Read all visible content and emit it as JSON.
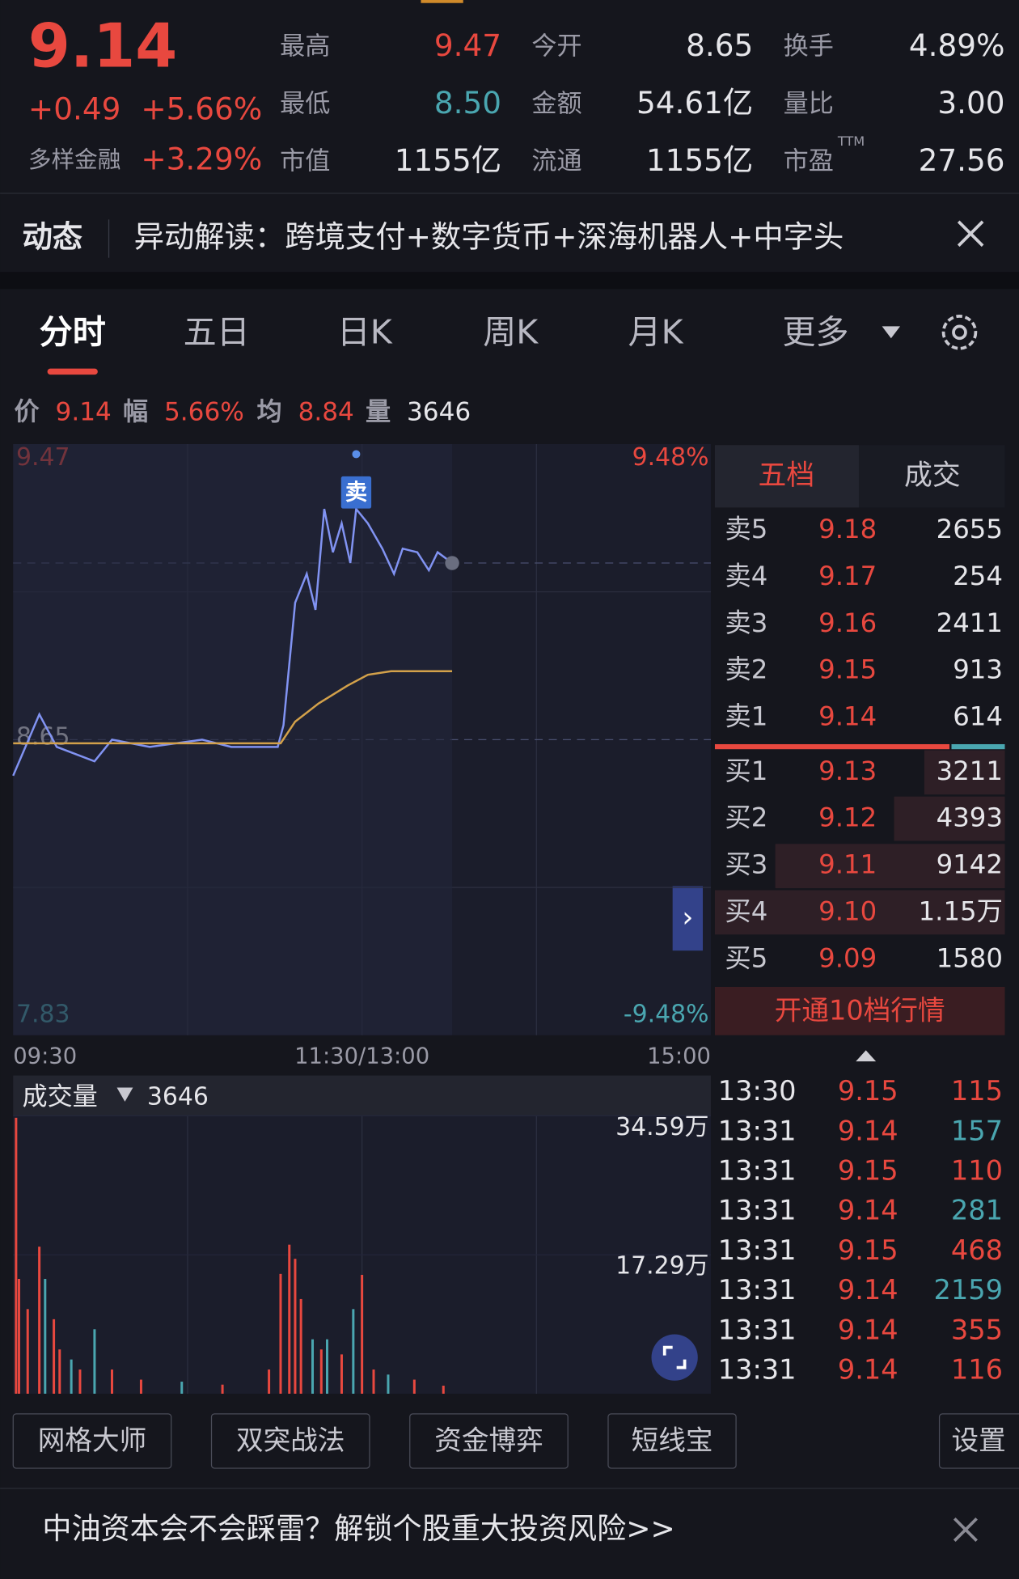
{
  "header": {
    "price": "9.14",
    "change": "+0.49",
    "change_pct": "+5.66%",
    "sector": "多样金融",
    "sector_pct": "+3.29%",
    "ttm": "TTM",
    "stats": [
      {
        "label": "最高",
        "value": "9.47",
        "color": "#e8483f"
      },
      {
        "label": "今开",
        "value": "8.65",
        "color": "#e6e6ea"
      },
      {
        "label": "换手",
        "value": "4.89%",
        "color": "#e6e6ea"
      },
      {
        "label": "最低",
        "value": "8.50",
        "color": "#4aa6b0"
      },
      {
        "label": "金额",
        "value": "54.61亿",
        "color": "#e6e6ea"
      },
      {
        "label": "量比",
        "value": "3.00",
        "color": "#e6e6ea"
      },
      {
        "label": "市值",
        "value": "1155亿",
        "color": "#e6e6ea"
      },
      {
        "label": "流通",
        "value": "1155亿",
        "color": "#e6e6ea"
      },
      {
        "label": "市盈",
        "value": "27.56",
        "color": "#e6e6ea"
      }
    ]
  },
  "news": {
    "tag": "动态",
    "text": "异动解读：跨境支付+数字货币+深海机器人+中字头"
  },
  "tabs": [
    "分时",
    "五日",
    "日K",
    "周K",
    "月K",
    "更多"
  ],
  "info_bar": [
    {
      "label": "价",
      "value": "9.14"
    },
    {
      "label": "幅",
      "value": "5.66%"
    },
    {
      "label": "均",
      "value": "8.84"
    },
    {
      "label": "量",
      "value": "3646"
    }
  ],
  "chart_data": [
    {
      "type": "line",
      "annotation": "卖",
      "xlim": [
        0,
        240
      ],
      "xticks": [
        {
          "value": 0,
          "label": "09:30"
        },
        {
          "value": 120,
          "label": "11:30/13:00"
        },
        {
          "value": 240,
          "label": "15:00"
        }
      ],
      "ylim": [
        7.83,
        9.47
      ],
      "yticks": [
        9.47,
        8.65,
        7.83
      ],
      "y2lim": [
        -9.48,
        9.48
      ],
      "y2ticks": [
        {
          "value": 9.48,
          "label": "9.48%"
        },
        {
          "value": -9.48,
          "label": "-9.48%"
        }
      ],
      "series": [
        {
          "color": "#8193f2",
          "x": [
            0,
            9,
            15,
            28,
            34,
            47,
            65,
            75,
            91,
            93,
            97,
            101,
            104,
            107,
            110,
            113,
            116,
            118,
            122,
            127,
            131,
            134,
            139,
            143,
            146,
            151
          ],
          "values": [
            8.55,
            8.72,
            8.63,
            8.59,
            8.65,
            8.63,
            8.65,
            8.63,
            8.63,
            8.69,
            9.03,
            9.11,
            9.01,
            9.29,
            9.17,
            9.25,
            9.14,
            9.29,
            9.25,
            9.18,
            9.11,
            9.18,
            9.17,
            9.12,
            9.17,
            9.14
          ]
        },
        {
          "color": "#d3a14a",
          "x": [
            0,
            92,
            97,
            105,
            115,
            122,
            130,
            151
          ],
          "values": [
            8.64,
            8.64,
            8.7,
            8.75,
            8.8,
            8.83,
            8.84,
            8.84
          ]
        }
      ]
    },
    {
      "type": "bar",
      "title": "成交量",
      "latest": "3646",
      "xlim": [
        0,
        240
      ],
      "ylim": [
        0,
        34.59
      ],
      "yticks": [
        {
          "value": 34.59,
          "label": "34.59万"
        },
        {
          "value": 17.29,
          "label": "17.29万"
        }
      ],
      "x": [
        1,
        2,
        5,
        9,
        11,
        14,
        16,
        20,
        23,
        28,
        34,
        44,
        58,
        72,
        88,
        92,
        95,
        97,
        99,
        103,
        106,
        108,
        113,
        117,
        120,
        124,
        129,
        138,
        148
      ],
      "values": [
        34.34,
        14.29,
        10.53,
        18.3,
        14.29,
        9.27,
        5.51,
        4.26,
        3.01,
        8.02,
        3.01,
        1.75,
        1.5,
        1.13,
        3.01,
        14.91,
        18.55,
        16.79,
        11.78,
        6.77,
        5.51,
        6.77,
        4.89,
        10.53,
        14.79,
        3.01,
        2.38,
        1.75,
        1.0
      ],
      "colors": [
        "#e8483f",
        "#e8483f",
        "#e8483f",
        "#e8483f",
        "#4aa6b0",
        "#e8483f",
        "#e8483f",
        "#4aa6b0",
        "#e8483f",
        "#4aa6b0",
        "#e8483f",
        "#e8483f",
        "#4aa6b0",
        "#e8483f",
        "#e8483f",
        "#e8483f",
        "#e8483f",
        "#e8483f",
        "#e8483f",
        "#4aa6b0",
        "#e8483f",
        "#4aa6b0",
        "#e8483f",
        "#4aa6b0",
        "#e8483f",
        "#e8483f",
        "#4aa6b0",
        "#e8483f",
        "#e8483f"
      ]
    }
  ],
  "order_book": {
    "tabs": [
      "五档",
      "成交"
    ],
    "asks": [
      {
        "label": "卖5",
        "price": "9.18",
        "volume": "2655"
      },
      {
        "label": "卖4",
        "price": "9.17",
        "volume": "254"
      },
      {
        "label": "卖3",
        "price": "9.16",
        "volume": "2411"
      },
      {
        "label": "卖2",
        "price": "9.15",
        "volume": "913"
      },
      {
        "label": "卖1",
        "price": "9.14",
        "volume": "614"
      }
    ],
    "bids": [
      {
        "label": "买1",
        "price": "9.13",
        "volume": "3211"
      },
      {
        "label": "买2",
        "price": "9.12",
        "volume": "4393"
      },
      {
        "label": "买3",
        "price": "9.11",
        "volume": "9142"
      },
      {
        "label": "买4",
        "price": "9.10",
        "volume": "1.15万"
      },
      {
        "label": "买5",
        "price": "9.09",
        "volume": "1580"
      }
    ],
    "button": "开通10档行情"
  },
  "trades": [
    {
      "time": "13:30",
      "price": "9.15",
      "volume": "115",
      "color": "#e8483f"
    },
    {
      "time": "13:31",
      "price": "9.14",
      "volume": "157",
      "color": "#4aa6b0"
    },
    {
      "time": "13:31",
      "price": "9.15",
      "volume": "110",
      "color": "#e8483f"
    },
    {
      "time": "13:31",
      "price": "9.14",
      "volume": "281",
      "color": "#4aa6b0"
    },
    {
      "time": "13:31",
      "price": "9.15",
      "volume": "468",
      "color": "#e8483f"
    },
    {
      "time": "13:31",
      "price": "9.14",
      "volume": "2159",
      "color": "#4aa6b0"
    },
    {
      "time": "13:31",
      "price": "9.14",
      "volume": "355",
      "color": "#e8483f"
    },
    {
      "time": "13:31",
      "price": "9.14",
      "volume": "116",
      "color": "#e8483f"
    }
  ],
  "tools": [
    "网格大师",
    "双突战法",
    "资金博弈",
    "短线宝"
  ],
  "settings": "设置",
  "banner": "中油资本会不会踩雷？解锁个股重大投资风险>>"
}
